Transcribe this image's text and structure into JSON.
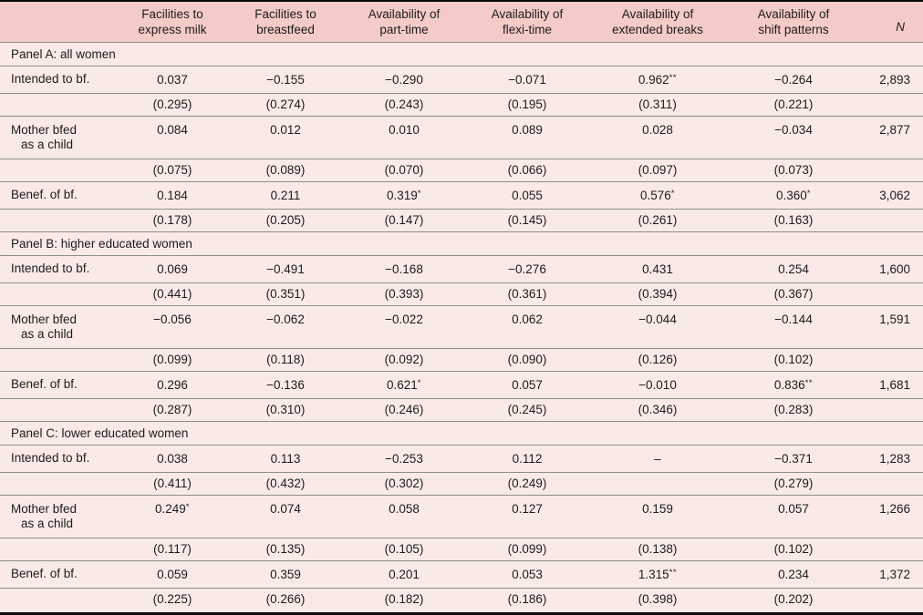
{
  "colors": {
    "header_bg": "#f4cbc7",
    "body_bg": "#faeae7",
    "rule": "#8d8d8d",
    "border": "#0a0a0a"
  },
  "table": {
    "row_label_header": "",
    "column_headers": [
      {
        "line1": "Facilities to",
        "line2": "express milk"
      },
      {
        "line1": "Facilities to",
        "line2": "breastfeed"
      },
      {
        "line1": "Availability of",
        "line2": "part-time"
      },
      {
        "line1": "Availability of",
        "line2": "flexi-time"
      },
      {
        "line1": "Availability of",
        "line2": "extended breaks"
      },
      {
        "line1": "Availability of",
        "line2": "shift patterns"
      },
      {
        "line1": "",
        "line2": "N"
      }
    ],
    "panels": [
      {
        "title": "Panel A: all women",
        "rows": [
          {
            "label": "Intended to bf.",
            "coefficients": [
              "0.037",
              "−0.155",
              "−0.290",
              "−0.071",
              "0.962**",
              "−0.264"
            ],
            "n": "2,893",
            "std_errors": [
              "(0.295)",
              "(0.274)",
              "(0.243)",
              "(0.195)",
              "(0.311)",
              "(0.221)"
            ]
          },
          {
            "label": "Mother bfed",
            "label2": "as a child",
            "coefficients": [
              "0.084",
              "0.012",
              "0.010",
              "0.089",
              "0.028",
              "−0.034"
            ],
            "n": "2,877",
            "std_errors": [
              "(0.075)",
              "(0.089)",
              "(0.070)",
              "(0.066)",
              "(0.097)",
              "(0.073)"
            ]
          },
          {
            "label": "Benef. of bf.",
            "coefficients": [
              "0.184",
              "0.211",
              "0.319*",
              "0.055",
              "0.576*",
              "0.360*"
            ],
            "n": "3,062",
            "std_errors": [
              "(0.178)",
              "(0.205)",
              "(0.147)",
              "(0.145)",
              "(0.261)",
              "(0.163)"
            ]
          }
        ]
      },
      {
        "title": "Panel B: higher educated women",
        "rows": [
          {
            "label": "Intended to bf.",
            "coefficients": [
              "0.069",
              "−0.491",
              "−0.168",
              "−0.276",
              "0.431",
              "0.254"
            ],
            "n": "1,600",
            "std_errors": [
              "(0.441)",
              "(0.351)",
              "(0.393)",
              "(0.361)",
              "(0.394)",
              "(0.367)"
            ]
          },
          {
            "label": "Mother bfed",
            "label2": "as a child",
            "coefficients": [
              "−0.056",
              "−0.062",
              "−0.022",
              "0.062",
              "−0.044",
              "−0.144"
            ],
            "n": "1,591",
            "std_errors": [
              "(0.099)",
              "(0.118)",
              "(0.092)",
              "(0.090)",
              "(0.126)",
              "(0.102)"
            ]
          },
          {
            "label": "Benef. of bf.",
            "coefficients": [
              "0.296",
              "−0.136",
              "0.621*",
              "0.057",
              "−0.010",
              "0.836**"
            ],
            "n": "1,681",
            "std_errors": [
              "(0.287)",
              "(0.310)",
              "(0.246)",
              "(0.245)",
              "(0.346)",
              "(0.283)"
            ]
          }
        ]
      },
      {
        "title": "Panel C: lower educated women",
        "rows": [
          {
            "label": "Intended to bf.",
            "coefficients": [
              "0.038",
              "0.113",
              "−0.253",
              "0.112",
              "–",
              "−0.371"
            ],
            "n": "1,283",
            "std_errors": [
              "(0.411)",
              "(0.432)",
              "(0.302)",
              "(0.249)",
              "",
              "(0.279)"
            ]
          },
          {
            "label": "Mother bfed",
            "label2": "as a child",
            "coefficients": [
              "0.249*",
              "0.074",
              "0.058",
              "0.127",
              "0.159",
              "0.057"
            ],
            "n": "1,266",
            "std_errors": [
              "(0.117)",
              "(0.135)",
              "(0.105)",
              "(0.099)",
              "(0.138)",
              "(0.102)"
            ]
          },
          {
            "label": "Benef. of bf.",
            "coefficients": [
              "0.059",
              "0.359",
              "0.201",
              "0.053",
              "1.315**",
              "0.234"
            ],
            "n": "1,372",
            "std_errors": [
              "(0.225)",
              "(0.266)",
              "(0.182)",
              "(0.186)",
              "(0.398)",
              "(0.202)"
            ]
          }
        ]
      }
    ]
  }
}
